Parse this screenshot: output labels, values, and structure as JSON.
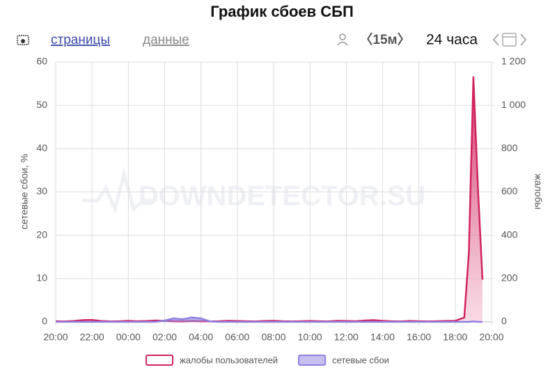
{
  "toolbar": {
    "pages": "страницы",
    "data": "данные",
    "interval": "〈15м〉",
    "period": "24 часа"
  },
  "chart_data": {
    "type": "line",
    "title": "График сбоев СБП",
    "watermark": "DOWNDETECTOR.SU",
    "ylabel": "сетевые сбои, %",
    "y2label": "жалобы",
    "xlim": [
      0,
      24
    ],
    "xticks": [
      {
        "value": 0,
        "label": "20:00"
      },
      {
        "value": 2,
        "label": "22:00"
      },
      {
        "value": 4,
        "label": "00:00"
      },
      {
        "value": 6,
        "label": "02:00"
      },
      {
        "value": 8,
        "label": "04:00"
      },
      {
        "value": 10,
        "label": "06:00"
      },
      {
        "value": 12,
        "label": "08:00"
      },
      {
        "value": 14,
        "label": "10:00"
      },
      {
        "value": 16,
        "label": "12:00"
      },
      {
        "value": 18,
        "label": "14:00"
      },
      {
        "value": 20,
        "label": "16:00"
      },
      {
        "value": 22,
        "label": "18:00"
      },
      {
        "value": 24,
        "label": "20:00"
      }
    ],
    "ylim": [
      0,
      60
    ],
    "yticks": [
      0,
      10,
      20,
      30,
      40,
      50,
      60
    ],
    "y2lim": [
      0,
      1200
    ],
    "y2ticks": [
      0,
      200,
      400,
      600,
      800,
      {
        "value": 1000,
        "label": "1 000"
      },
      {
        "value": 1200,
        "label": "1 200"
      }
    ],
    "grid": true,
    "x": [
      0,
      0.5,
      1,
      1.5,
      2,
      2.5,
      3,
      3.5,
      4,
      4.5,
      5,
      5.5,
      6,
      6.5,
      7,
      7.5,
      8,
      8.5,
      9,
      9.5,
      10,
      10.5,
      11,
      11.5,
      12,
      12.5,
      13,
      13.5,
      14,
      14.5,
      15,
      15.5,
      16,
      16.5,
      17,
      17.5,
      18,
      18.5,
      19,
      19.5,
      20,
      20.5,
      21,
      21.5,
      22,
      22.5,
      22.75,
      23,
      23.25,
      23.5
    ],
    "series": [
      {
        "name": "жалобы пользователей",
        "color": "#d0245f",
        "axis": "y2",
        "fill": true,
        "values": [
          3,
          2,
          4,
          8,
          9,
          4,
          2,
          3,
          5,
          3,
          4,
          6,
          5,
          3,
          2,
          4,
          3,
          2,
          3,
          5,
          4,
          3,
          2,
          4,
          5,
          3,
          2,
          3,
          4,
          3,
          2,
          5,
          4,
          3,
          6,
          8,
          5,
          3,
          2,
          4,
          3,
          2,
          3,
          4,
          5,
          20,
          320,
          1130,
          620,
          195
        ]
      },
      {
        "name": "сетевые сбои",
        "color": "#8f7fe0",
        "axis": "y",
        "fill": true,
        "values": [
          0,
          0,
          0,
          0,
          0,
          0,
          0,
          0,
          0,
          0,
          0,
          0,
          0.3,
          0.8,
          0.6,
          1.0,
          0.8,
          0.1,
          0,
          0,
          0,
          0,
          0,
          0,
          0,
          0,
          0,
          0,
          0,
          0,
          0,
          0,
          0,
          0,
          0,
          0,
          0,
          0,
          0,
          0,
          0,
          0,
          0,
          0,
          0,
          0,
          0,
          0.1,
          0,
          0
        ]
      }
    ]
  }
}
